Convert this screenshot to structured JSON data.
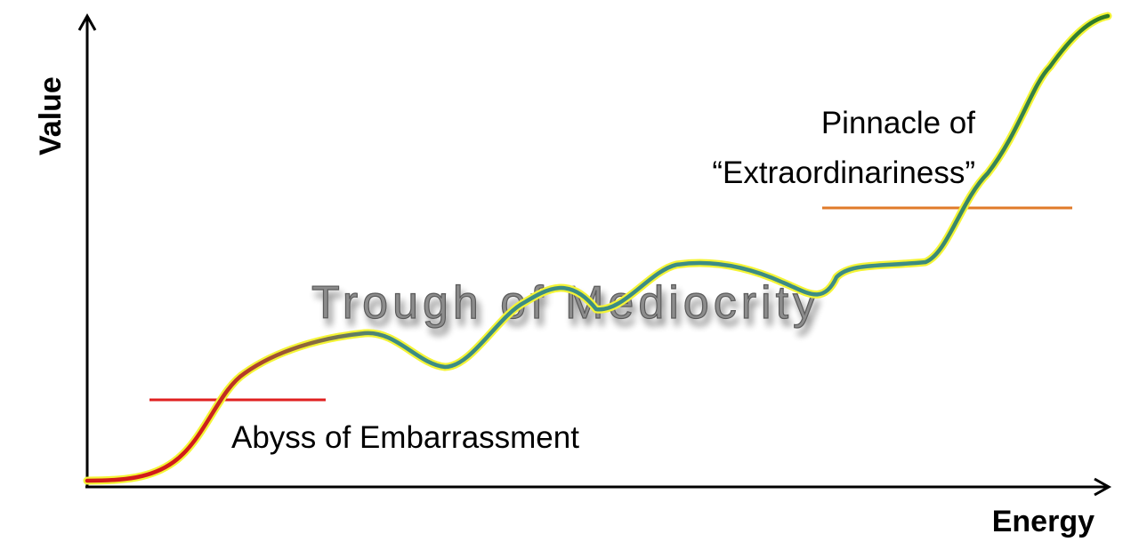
{
  "axes": {
    "x_label": "Energy",
    "y_label": "Value"
  },
  "annotations": {
    "pinnacle_line1": "Pinnacle of",
    "pinnacle_line2": "“Extraordinariness”",
    "abyss": "Abyss of Embarrassment",
    "trough": "Trough of Mediocrity"
  },
  "colors": {
    "axis": "#000000",
    "curve_halo": "#f4f436",
    "curve_start": "#d11a1a",
    "curve_mid": "#8a6a3c",
    "curve_teal": "#3c8c84",
    "curve_end": "#2f7a22",
    "abyss_line": "#e02020",
    "pinnacle_line": "#e07b2a",
    "trough_text": "#8c8c8c"
  }
}
